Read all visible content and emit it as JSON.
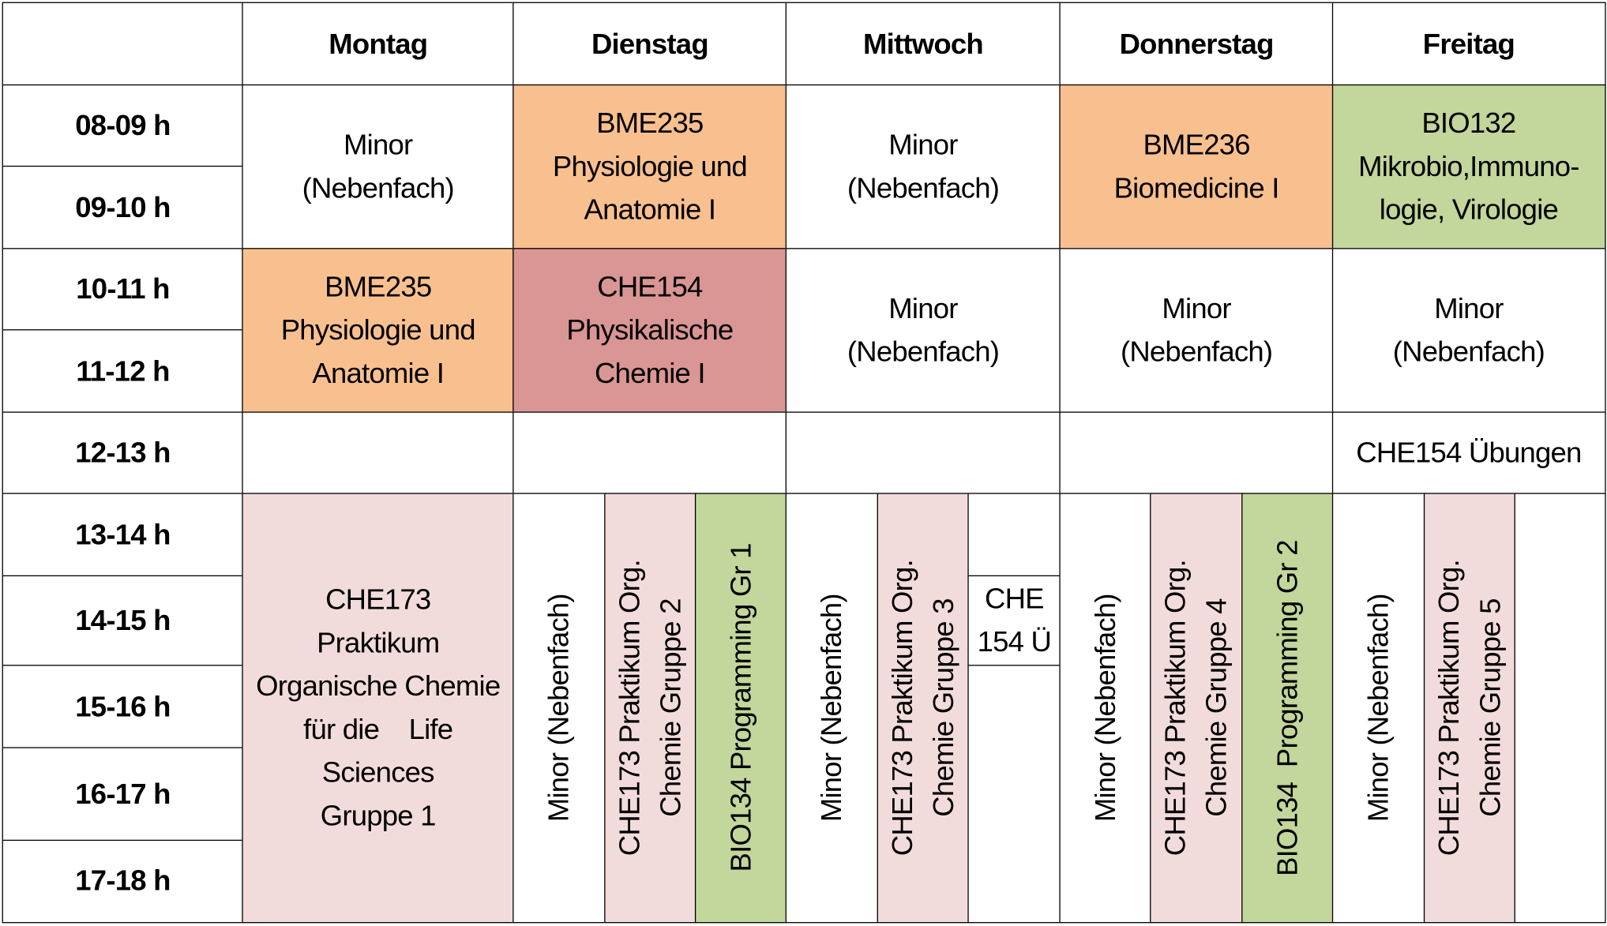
{
  "header": {
    "days": [
      "Montag",
      "Dienstag",
      "Mittwoch",
      "Donnerstag",
      "Freitag"
    ]
  },
  "times": [
    "08-09 h",
    "09-10 h",
    "10-11 h",
    "11-12 h",
    "12-13 h",
    "13-14 h",
    "14-15 h",
    "15-16 h",
    "16-17 h",
    "17-18 h"
  ],
  "cells": [
    "Minor\n(Nebenfach)",
    "BME235\nPhysiologie und\nAnatomie I",
    "Minor\n(Nebenfach)",
    "BME236\nBiomedicine I",
    "BIO132\nMikrobio,Immuno-\nlogie, Virologie",
    "BME235\nPhysiologie und\nAnatomie I",
    "CHE154\nPhysikalische\nChemie I",
    "Minor\n(Nebenfach)",
    "Minor\n(Nebenfach)",
    "Minor\n(Nebenfach)",
    "CHE154 Übungen",
    "CHE173\nPraktikum\nOrganische Chemie\nfür die    Life\nSciences\nGruppe 1",
    "Minor (Nebenfach)",
    "CHE173 Praktikum Org.\nChemie Gruppe 2",
    "BIO134 Programming Gr 1",
    "Minor (Nebenfach)",
    "CHE173 Praktikum Org.\nChemie Gruppe 3",
    "CHE\n154 Ü",
    "Minor (Nebenfach)",
    "CHE173 Praktikum Org.\nChemie Gruppe 4",
    "BIO134  Programming Gr 2",
    "Minor (Nebenfach)",
    "CHE173 Praktikum Org.\nChemie Gruppe 5"
  ]
}
